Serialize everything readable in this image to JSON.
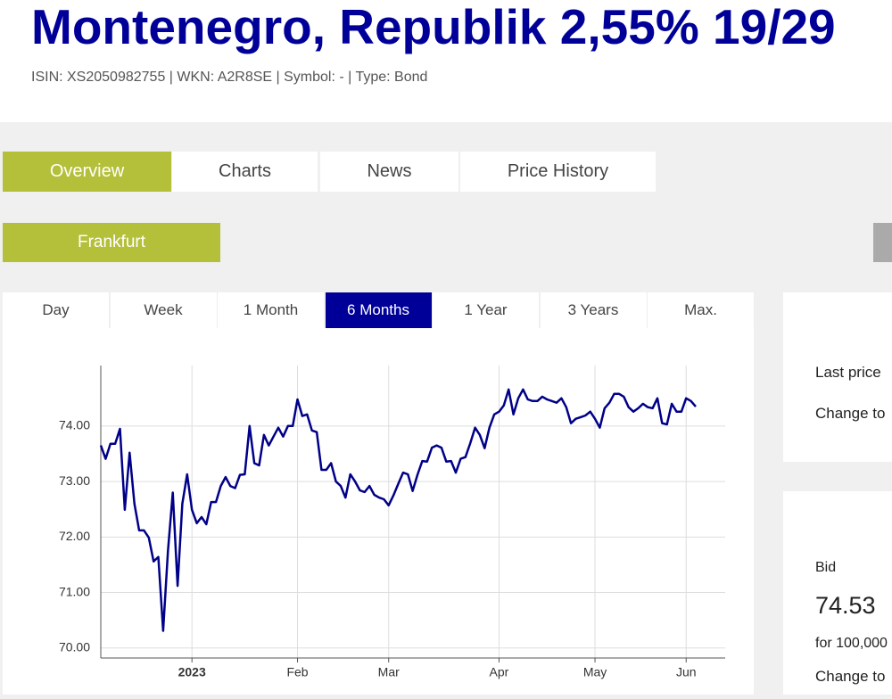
{
  "header": {
    "title": "Montenegro, Republik 2,55% 19/29",
    "meta": "ISIN: XS2050982755 | WKN: A2R8SE | Symbol: - | Type: Bond"
  },
  "tabs": [
    {
      "label": "Overview",
      "active": true
    },
    {
      "label": "Charts",
      "active": false
    },
    {
      "label": "News",
      "active": false
    },
    {
      "label": "Price History",
      "active": false
    }
  ],
  "exchange": "Frankfurt",
  "periods": [
    {
      "label": "Day",
      "active": false
    },
    {
      "label": "Week",
      "active": false
    },
    {
      "label": "1 Month",
      "active": false
    },
    {
      "label": "6 Months",
      "active": true
    },
    {
      "label": "1 Year",
      "active": false
    },
    {
      "label": "3 Years",
      "active": false
    },
    {
      "label": "Max.",
      "active": false
    }
  ],
  "chart": {
    "type": "line",
    "color": "#000088",
    "grid": true,
    "categories": [
      null,
      null,
      null,
      null,
      null,
      null,
      null,
      null,
      null,
      null,
      null,
      null,
      null,
      null,
      null,
      null,
      null,
      null,
      null,
      "2023",
      null,
      null,
      null,
      null,
      null,
      null,
      null,
      null,
      null,
      null,
      null,
      null,
      null,
      null,
      null,
      null,
      null,
      null,
      null,
      null,
      null,
      "Feb",
      null,
      null,
      null,
      null,
      null,
      null,
      null,
      null,
      null,
      null,
      null,
      null,
      null,
      null,
      null,
      null,
      null,
      null,
      "Mar",
      null,
      null,
      null,
      null,
      null,
      null,
      null,
      null,
      null,
      null,
      null,
      null,
      null,
      null,
      null,
      null,
      null,
      null,
      null,
      null,
      null,
      null,
      "Apr",
      null,
      null,
      null,
      null,
      null,
      null,
      null,
      null,
      null,
      null,
      null,
      null,
      null,
      null,
      null,
      null,
      null,
      null,
      null,
      "May",
      null,
      null,
      null,
      null,
      null,
      null,
      null,
      null,
      null,
      null,
      null,
      null,
      null,
      null,
      null,
      null,
      null,
      null,
      "Jun",
      null,
      null
    ],
    "values": [
      73.65,
      73.41,
      73.68,
      73.68,
      73.95,
      72.49,
      73.52,
      72.6,
      72.12,
      72.12,
      71.99,
      71.56,
      71.64,
      70.31,
      71.75,
      72.8,
      71.12,
      72.6,
      73.13,
      72.49,
      72.25,
      72.36,
      72.23,
      72.63,
      72.63,
      72.92,
      73.08,
      72.92,
      72.88,
      73.12,
      73.13,
      74.0,
      73.33,
      73.29,
      73.84,
      73.65,
      73.81,
      73.97,
      73.81,
      74.0,
      74.0,
      74.48,
      74.18,
      74.21,
      73.92,
      73.89,
      73.21,
      73.21,
      73.33,
      73.0,
      72.92,
      72.71,
      73.13,
      73.0,
      72.84,
      72.81,
      72.92,
      72.76,
      72.71,
      72.68,
      72.57,
      72.75,
      72.96,
      73.16,
      73.13,
      72.83,
      73.12,
      73.37,
      73.36,
      73.61,
      73.65,
      73.61,
      73.36,
      73.37,
      73.16,
      73.41,
      73.44,
      73.69,
      73.97,
      73.84,
      73.6,
      73.97,
      74.21,
      74.26,
      74.37,
      74.66,
      74.21,
      74.5,
      74.66,
      74.48,
      74.45,
      74.45,
      74.53,
      74.48,
      74.45,
      74.42,
      74.5,
      74.34,
      74.05,
      74.13,
      74.16,
      74.19,
      74.26,
      74.13,
      73.97,
      74.32,
      74.42,
      74.58,
      74.58,
      74.53,
      74.34,
      74.26,
      74.32,
      74.4,
      74.34,
      74.32,
      74.5,
      74.05,
      74.03,
      74.4,
      74.26,
      74.26,
      74.5,
      74.45,
      74.35
    ],
    "ylim": [
      69.82,
      75.09
    ],
    "yticks": [
      {
        "value": 70,
        "label": "70.00"
      },
      {
        "value": 71,
        "label": "71.00"
      },
      {
        "value": 72,
        "label": "72.00"
      },
      {
        "value": 73,
        "label": "73.00"
      },
      {
        "value": 74,
        "label": "74.00"
      }
    ]
  },
  "quote_panel": {
    "last_price_label": "Last price",
    "change_label": "Change to"
  },
  "bid_panel": {
    "label": "Bid",
    "value": "74.53",
    "unit": "for 100,000",
    "change_label": "Change to"
  }
}
